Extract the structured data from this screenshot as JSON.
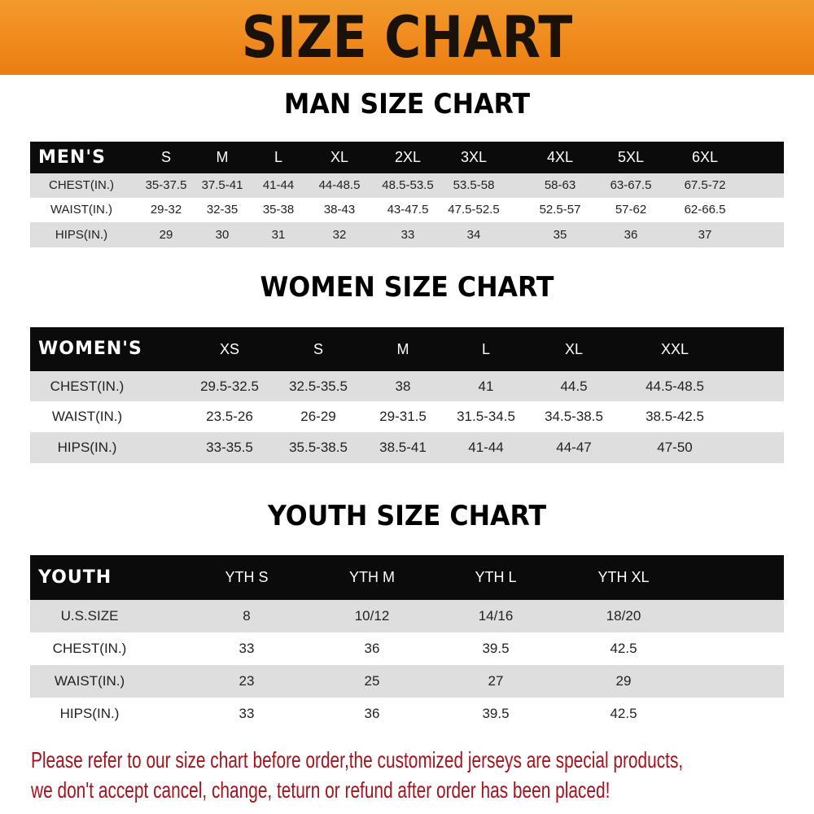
{
  "banner": {
    "title": "SIZE CHART",
    "color": "#ef8a1e"
  },
  "men": {
    "title": "MAN SIZE CHART",
    "header_label": "MEN'S",
    "sizes": [
      "S",
      "M",
      "L",
      "XL",
      "2XL",
      "3XL",
      "4XL",
      "5XL",
      "6XL"
    ],
    "rows": [
      {
        "label": "CHEST(IN.)",
        "values": [
          "35-37.5",
          "37.5-41",
          "41-44",
          "44-48.5",
          "48.5-53.5",
          "53.5-58",
          "58-63",
          "63-67.5",
          "67.5-72"
        ]
      },
      {
        "label": "WAIST(IN.)",
        "values": [
          "29-32",
          "32-35",
          "35-38",
          "38-43",
          "43-47.5",
          "47.5-52.5",
          "52.5-57",
          "57-62",
          "62-66.5"
        ]
      },
      {
        "label": "HIPS(IN.)",
        "values": [
          "29",
          "30",
          "31",
          "32",
          "33",
          "34",
          "35",
          "36",
          "37"
        ]
      }
    ]
  },
  "women": {
    "title": "WOMEN SIZE CHART",
    "header_label": "WOMEN'S",
    "sizes": [
      "XS",
      "S",
      "M",
      "L",
      "XL",
      "XXL"
    ],
    "rows": [
      {
        "label": "CHEST(IN.)",
        "values": [
          "29.5-32.5",
          "32.5-35.5",
          "38",
          "41",
          "44.5",
          "44.5-48.5"
        ]
      },
      {
        "label": "WAIST(IN.)",
        "values": [
          "23.5-26",
          "26-29",
          "29-31.5",
          "31.5-34.5",
          "34.5-38.5",
          "38.5-42.5"
        ]
      },
      {
        "label": "HIPS(IN.)",
        "values": [
          "33-35.5",
          "35.5-38.5",
          "38.5-41",
          "41-44",
          "44-47",
          "47-50"
        ]
      }
    ]
  },
  "youth": {
    "title": "YOUTH SIZE CHART",
    "header_label": "YOUTH",
    "sizes": [
      "YTH S",
      "YTH M",
      "YTH L",
      "YTH XL"
    ],
    "rows": [
      {
        "label": "U.S.SIZE",
        "values": [
          "8",
          "10/12",
          "14/16",
          "18/20"
        ]
      },
      {
        "label": "CHEST(IN.)",
        "values": [
          "33",
          "36",
          "39.5",
          "42.5"
        ]
      },
      {
        "label": "WAIST(IN.)",
        "values": [
          "23",
          "25",
          "27",
          "29"
        ]
      },
      {
        "label": "HIPS(IN.)",
        "values": [
          "33",
          "36",
          "39.5",
          "42.5"
        ]
      }
    ]
  },
  "notice": {
    "line1": "Please refer to our size chart before order,the customized jerseys are special products,",
    "line2": "we don't accept cancel, change, teturn or refund after order has been placed!",
    "color": "#a3141c"
  }
}
